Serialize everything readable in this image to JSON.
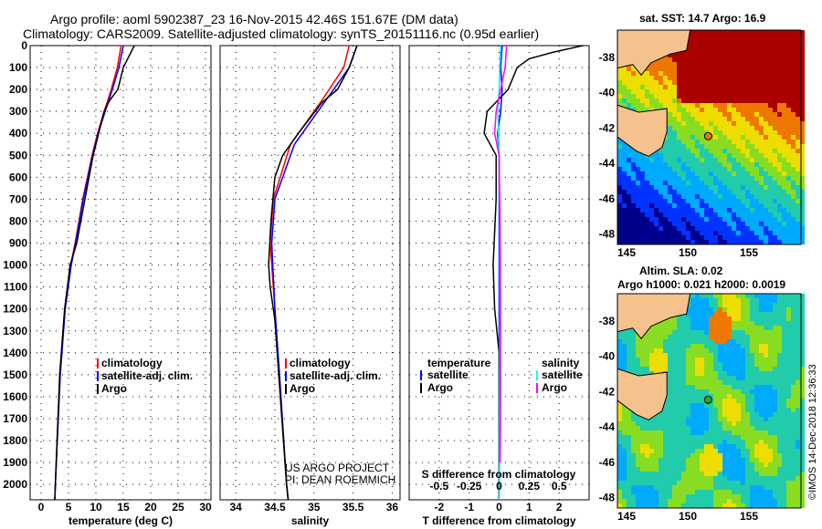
{
  "title_line1": "Argo profile: aoml 5902387_23 16-Nov-2015 42.46S 151.67E (DM data)",
  "title_line2": "Climatology: CARS2009. Satellite-adjusted climatology: synTS_20151116.nc (0.95d earlier)",
  "colors": {
    "climatology": "#ff0000",
    "satellite": "#0000ff",
    "argo": "#000000",
    "sal_sat": "#00ffff",
    "sal_argo": "#ff00ff",
    "land": "#f5c28e"
  },
  "chart_data": [
    {
      "type": "line",
      "title": "",
      "xlabel": "temperature (deg C)",
      "ylabel": "",
      "xlim": [
        -2,
        31
      ],
      "ylim": [
        2070,
        0
      ],
      "xticks": [
        "0",
        "5",
        "10",
        "15",
        "20",
        "25",
        "30"
      ],
      "xtick_vals": [
        0,
        5,
        10,
        15,
        20,
        25,
        30
      ],
      "yticks": [
        "0",
        "100",
        "200",
        "300",
        "400",
        "500",
        "600",
        "700",
        "800",
        "900",
        "1000",
        "1100",
        "1200",
        "1300",
        "1400",
        "1500",
        "1600",
        "1700",
        "1800",
        "1900",
        "2000"
      ],
      "legend": [
        "climatology",
        "satellite-adj. clim.",
        "Argo"
      ],
      "series": [
        {
          "name": "climatology",
          "color": "#ff0000",
          "depth": [
            0,
            100,
            200,
            300,
            400,
            500,
            700,
            900,
            1000,
            1200,
            1500,
            2000,
            2070
          ],
          "values": [
            14.6,
            13.9,
            12.8,
            11.5,
            10.3,
            9.3,
            7.6,
            6.2,
            5.4,
            4.3,
            3.4,
            2.6,
            2.5
          ]
        },
        {
          "name": "satellite-adj. clim.",
          "color": "#0000ff",
          "depth": [
            0,
            100,
            200,
            300,
            400,
            500,
            700,
            900,
            1000,
            1200,
            1500,
            2000,
            2070
          ],
          "values": [
            15,
            14.2,
            13,
            11.7,
            10.4,
            9.4,
            7.7,
            6.3,
            5.5,
            4.4,
            3.5,
            2.6,
            2.5
          ]
        },
        {
          "name": "Argo",
          "color": "#000000",
          "depth": [
            0,
            50,
            100,
            200,
            250,
            300,
            400,
            500,
            700,
            900,
            1000,
            1200,
            1500,
            2000,
            2070
          ],
          "values": [
            17,
            16,
            15,
            14,
            12.5,
            11.5,
            10.5,
            9.5,
            8,
            6.5,
            5.3,
            4.3,
            3.4,
            2.6,
            2.5
          ]
        }
      ]
    },
    {
      "type": "line",
      "xlabel": "salinity",
      "xlim": [
        33.8,
        36.1
      ],
      "ylim": [
        2070,
        0
      ],
      "xticks": [
        "34",
        "34.5",
        "35",
        "35.5",
        "36"
      ],
      "xtick_vals": [
        34,
        34.5,
        35,
        35.5,
        36
      ],
      "legend": [
        "climatology",
        "satellite-adj. clim.",
        "Argo"
      ],
      "annotation": [
        "US ARGO PROJECT",
        "PI: DEAN ROEMMICH"
      ],
      "series": [
        {
          "name": "climatology",
          "color": "#ff0000",
          "depth": [
            0,
            100,
            250,
            450,
            700,
            900,
            1200,
            1500,
            2000,
            2070
          ],
          "values": [
            35.45,
            35.38,
            35.1,
            34.7,
            34.48,
            34.44,
            34.5,
            34.55,
            34.65,
            34.67
          ]
        },
        {
          "name": "satellite-adj. clim.",
          "color": "#0000ff",
          "depth": [
            0,
            100,
            250,
            450,
            700,
            900,
            1200,
            1500,
            2000,
            2070
          ],
          "values": [
            35.55,
            35.45,
            35.15,
            34.75,
            34.5,
            34.46,
            34.5,
            34.56,
            34.65,
            34.67
          ]
        },
        {
          "name": "Argo",
          "color": "#000000",
          "depth": [
            0,
            100,
            200,
            260,
            400,
            500,
            600,
            800,
            1000,
            1100,
            1250,
            1500,
            2000,
            2070
          ],
          "values": [
            35.55,
            35.45,
            35.3,
            35.1,
            34.8,
            34.6,
            34.5,
            34.45,
            34.42,
            34.44,
            34.5,
            34.55,
            34.65,
            34.67
          ]
        }
      ]
    },
    {
      "type": "line",
      "xlabel": "T difference from climatology",
      "xlabel2": "S difference from climatology",
      "xlim": [
        -3,
        3
      ],
      "ylim": [
        2070,
        0
      ],
      "xticks": [
        "-2",
        "-1",
        "0",
        "1",
        "2"
      ],
      "xtick_vals": [
        -2,
        -1,
        0,
        1,
        2
      ],
      "xticks2": [
        "-0.5",
        "-0.25",
        "0",
        "0.25",
        "0.5"
      ],
      "legend_t": {
        "title": "temperature",
        "items": [
          "satellite",
          "Argo"
        ]
      },
      "legend_s": {
        "title": "salinity",
        "items": [
          "satellite",
          "Argo"
        ]
      },
      "series": [
        {
          "name": "T satellite",
          "color": "#0000ff",
          "depth": [
            0,
            100,
            200,
            300,
            400,
            500,
            1000,
            1500,
            2070
          ],
          "values": [
            0.1,
            0.05,
            0.1,
            0.05,
            -0.05,
            0,
            0,
            0,
            0
          ]
        },
        {
          "name": "T Argo",
          "color": "#000000",
          "depth": [
            0,
            30,
            60,
            100,
            200,
            300,
            400,
            500,
            700,
            1000,
            1200,
            1400,
            2070
          ],
          "values": [
            2.8,
            1.8,
            1.0,
            0.6,
            0.3,
            -0.4,
            -0.5,
            -0.1,
            -0.1,
            -0.2,
            -0.15,
            0,
            0
          ]
        },
        {
          "name": "S satellite",
          "color": "#00ffff",
          "depth": [
            0,
            100,
            200,
            300,
            400,
            500,
            800,
            1200,
            1600,
            2070
          ],
          "values": [
            0.05,
            0.02,
            0,
            -0.05,
            -0.02,
            0,
            0.02,
            0.03,
            0.02,
            0.01
          ]
        },
        {
          "name": "S Argo",
          "color": "#ff00ff",
          "depth": [
            0,
            100,
            200,
            300,
            400,
            500,
            800,
            1200,
            1600,
            1900
          ],
          "values": [
            0.25,
            0.2,
            0.05,
            -0.1,
            -0.15,
            0,
            0.03,
            0.05,
            0.05,
            0.03
          ]
        }
      ]
    }
  ],
  "map_top": {
    "title": "sat. SST: 14.7 Argo: 16.9",
    "xticks": [
      "145",
      "150",
      "155"
    ],
    "yticks": [
      "-38",
      "-40",
      "-42",
      "-44",
      "-46",
      "-48"
    ]
  },
  "map_bottom": {
    "title1": "Altim. SLA: 0.02",
    "title2": "Argo h1000: 0.021 h2000: 0.0019",
    "xticks": [
      "145",
      "150",
      "155"
    ],
    "yticks": [
      "-38",
      "-40",
      "-42",
      "-44",
      "-46",
      "-48"
    ]
  },
  "credit": "©IMOS 14-Dec-2018 12:36:33"
}
